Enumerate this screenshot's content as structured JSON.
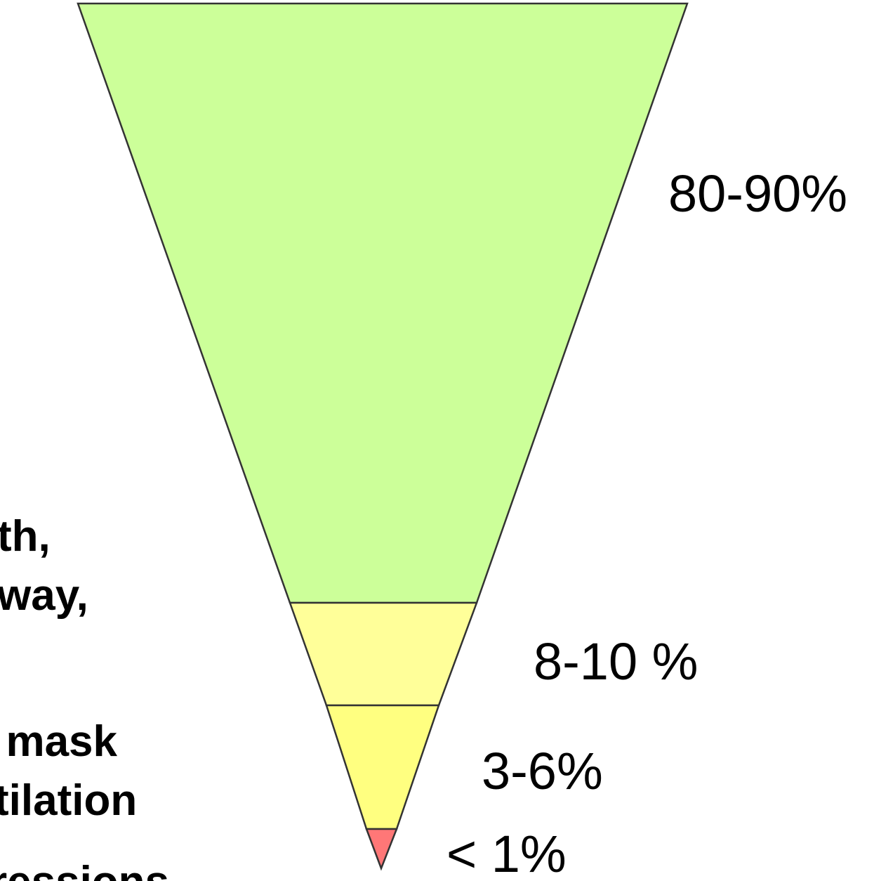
{
  "diagram": {
    "type": "inverted-pyramid",
    "tiers": [
      {
        "id": "tier-1",
        "percentage": "80-90%",
        "color": "#ccff99"
      },
      {
        "id": "tier-2",
        "percentage": "8-10 %",
        "color": "#ffff99"
      },
      {
        "id": "tier-3",
        "percentage": "3-6%",
        "color": "#ffff80"
      },
      {
        "id": "tier-4",
        "percentage": "< 1%",
        "color": "#ff7777"
      }
    ],
    "side_labels": [
      "th,",
      "way,",
      "l mask",
      "tilation",
      "ressions"
    ],
    "outline_color": "#333333"
  }
}
